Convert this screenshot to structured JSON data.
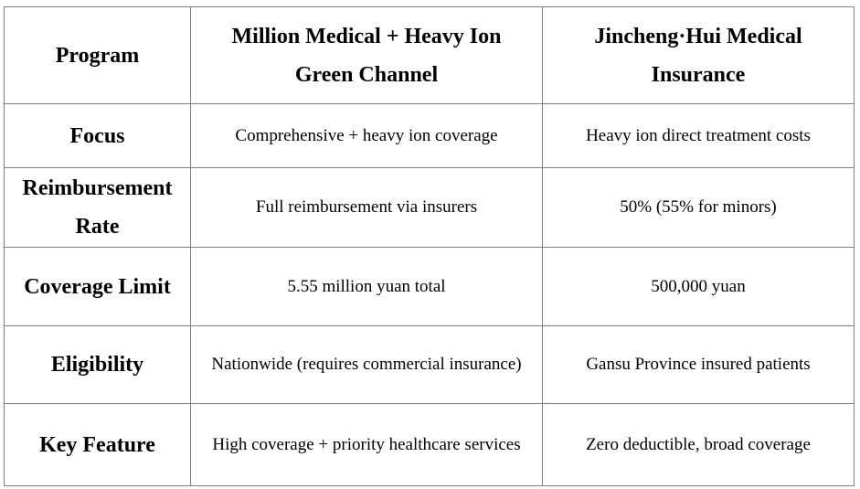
{
  "table": {
    "headers": [
      "Program",
      "Million Medical + Heavy Ion Green Channel",
      "Jincheng·Hui Medical Insurance"
    ],
    "rows": [
      {
        "label": "Focus",
        "values": [
          "Comprehensive + heavy ion coverage",
          "Heavy ion direct treatment costs"
        ]
      },
      {
        "label": "Reimbursement Rate",
        "values": [
          "Full reimbursement via insurers",
          "50% (55% for minors)"
        ]
      },
      {
        "label": "Coverage Limit",
        "values": [
          "5.55 million yuan total",
          "500,000 yuan"
        ]
      },
      {
        "label": "Eligibility",
        "values": [
          "Nationwide (requires commercial insurance)",
          "Gansu Province insured patients"
        ]
      },
      {
        "label": "Key Feature",
        "values": [
          "High coverage + priority healthcare services",
          "Zero deductible, broad coverage"
        ]
      }
    ]
  }
}
